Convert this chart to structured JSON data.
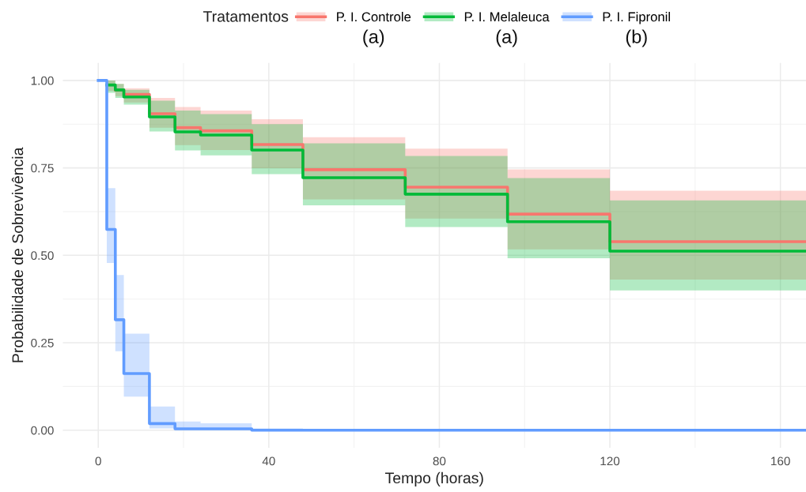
{
  "chart_data": {
    "type": "step",
    "xlabel": "Tempo (horas)",
    "ylabel": "Probabilidade de Sobrevivência",
    "legend_title": "Tratamentos",
    "legend": "top",
    "grid": true,
    "xlim": [
      -8.3,
      166
    ],
    "xticks": [
      0,
      40,
      80,
      120,
      160
    ],
    "ylim": [
      -0.05,
      1.05
    ],
    "yticks": [
      {
        "value": 0,
        "label": "0.00"
      },
      {
        "value": 0.25,
        "label": "0.25"
      },
      {
        "value": 0.5,
        "label": "0.50"
      },
      {
        "value": 0.75,
        "label": "0.75"
      },
      {
        "value": 1,
        "label": "1.00"
      }
    ],
    "annotations": [
      "(a)",
      "(a)",
      "(b)"
    ],
    "series": [
      {
        "name": "P. I. Controle",
        "color": "#f8766d",
        "x": [
          0,
          2,
          4,
          6,
          12,
          18,
          24,
          36,
          48,
          72,
          96,
          120,
          166
        ],
        "values": [
          null,
          null,
          0.973,
          0.96,
          0.905,
          0.865,
          0.856,
          0.817,
          0.745,
          0.695,
          0.618,
          0.539,
          0.539
        ],
        "upper": [
          1.0,
          1.0,
          0.99,
          0.978,
          0.95,
          0.924,
          0.914,
          0.889,
          0.838,
          0.805,
          0.746,
          0.685,
          0.685
        ],
        "lower": [
          1.0,
          0.97,
          0.955,
          0.937,
          0.865,
          0.815,
          0.801,
          0.749,
          0.66,
          0.605,
          0.517,
          0.431,
          0.431
        ]
      },
      {
        "name": "P. I. Melaleuca",
        "color": "#00ba38",
        "x": [
          0,
          2,
          4,
          6,
          12,
          18,
          24,
          36,
          48,
          72,
          96,
          120,
          166
        ],
        "values": [
          null,
          0.987,
          0.973,
          0.953,
          0.896,
          0.853,
          0.844,
          0.801,
          0.722,
          0.675,
          0.596,
          0.512,
          0.512
        ],
        "upper": [
          1.0,
          1.0,
          0.99,
          0.973,
          0.942,
          0.914,
          0.904,
          0.875,
          0.82,
          0.784,
          0.721,
          0.657,
          0.657
        ],
        "lower": [
          1.0,
          0.965,
          0.95,
          0.931,
          0.854,
          0.8,
          0.786,
          0.732,
          0.643,
          0.581,
          0.492,
          0.4,
          0.4
        ]
      },
      {
        "name": "P. I. Fipronil",
        "color": "#619cff",
        "x": [
          0,
          2,
          4,
          6,
          12,
          18,
          24,
          36,
          48,
          166
        ],
        "values": [
          1.0,
          0.574,
          0.316,
          0.162,
          0.019,
          0.004,
          0.004,
          0.0,
          0.0,
          0.0
        ],
        "upper": [
          1.0,
          0.692,
          0.444,
          0.276,
          0.068,
          0.025,
          0.02,
          0.005,
          0.0,
          0.0
        ],
        "lower": [
          1.0,
          0.478,
          0.226,
          0.096,
          0.005,
          0.0,
          0.0,
          0.0,
          0.0,
          0.0
        ]
      }
    ]
  }
}
